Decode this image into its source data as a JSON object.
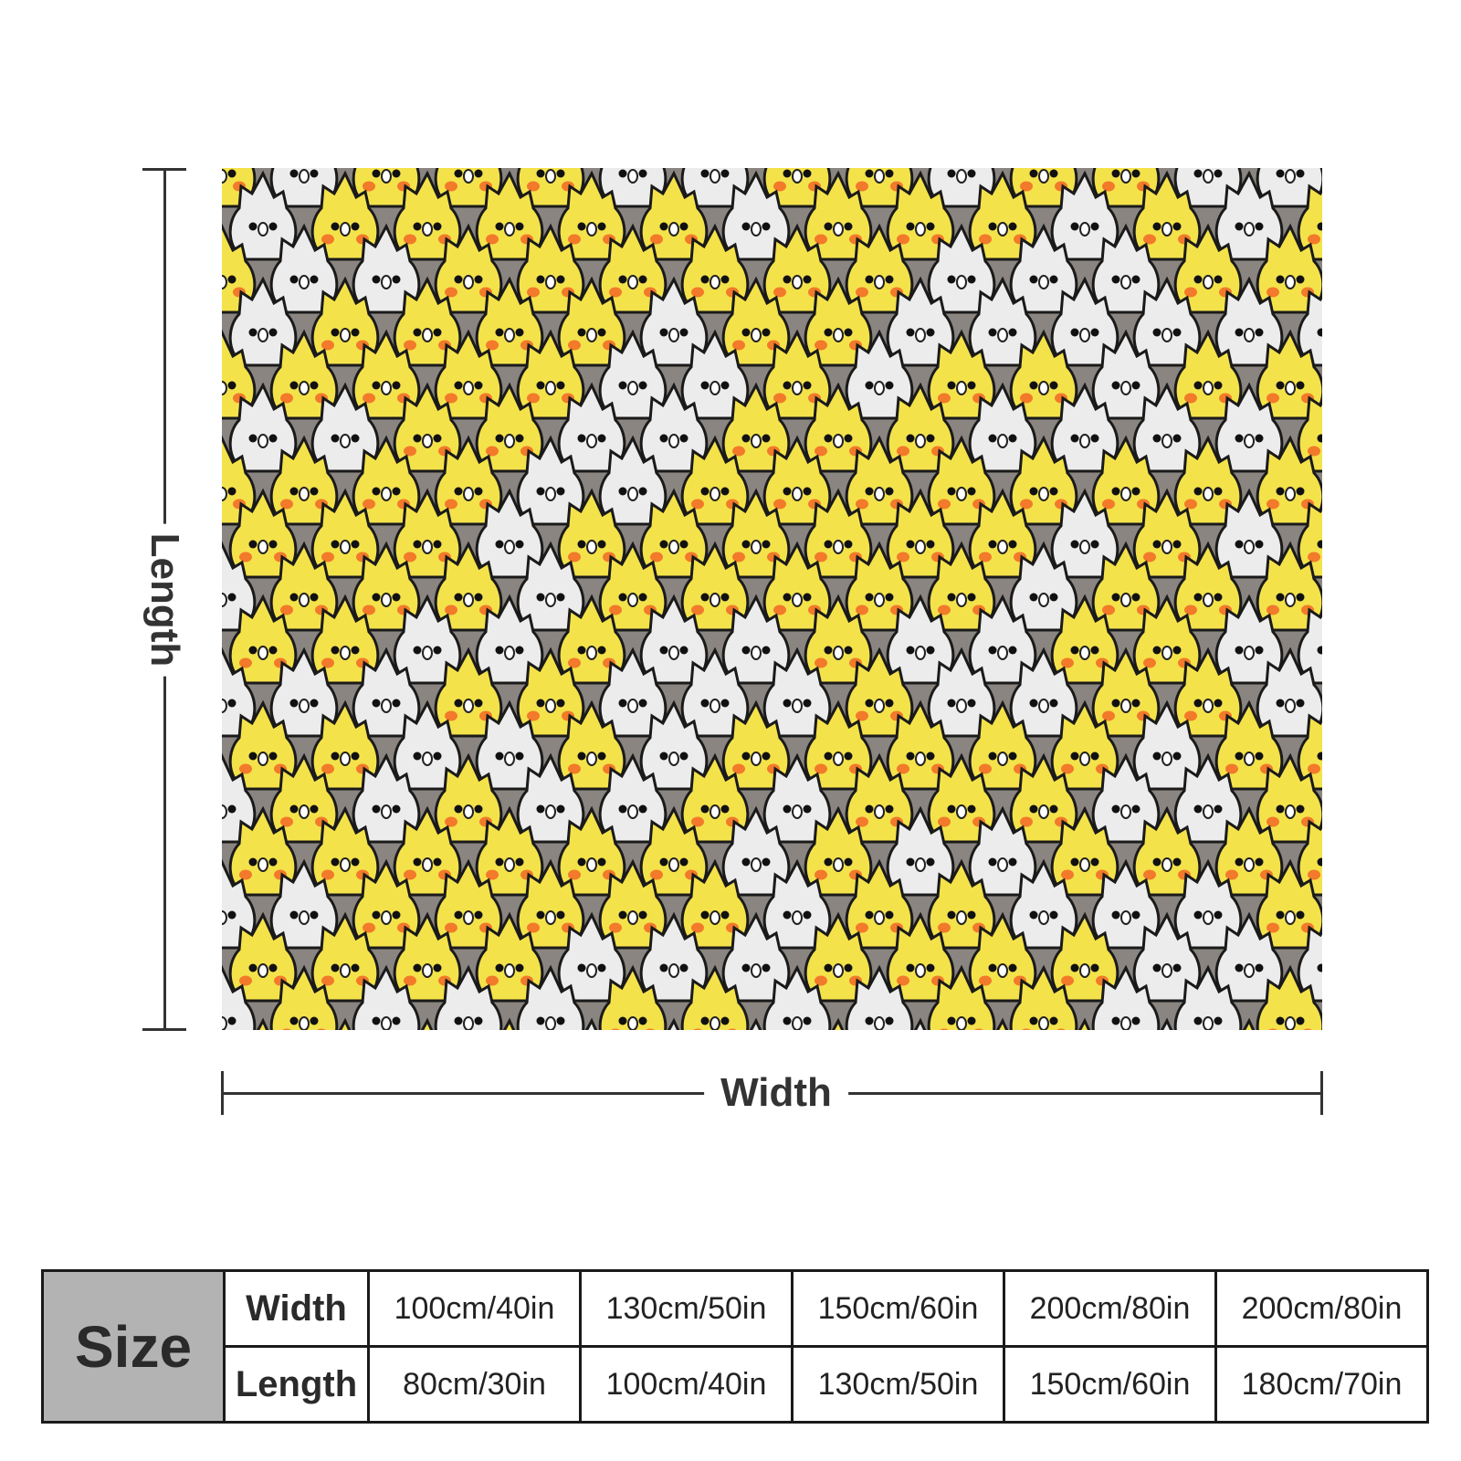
{
  "diagram": {
    "length_label": "Length",
    "width_label": "Width"
  },
  "product": {
    "pattern_icon": "cockatiel-pattern",
    "colors": {
      "yellow": "#f4e24b",
      "white": "#ececec",
      "grey": "#8a8580",
      "cheek": "#f27a2a",
      "outline": "#1a1a1a"
    }
  },
  "size_table": {
    "header": "Size",
    "row_labels": [
      "Width",
      "Length"
    ],
    "widths": [
      "100cm/40in",
      "130cm/50in",
      "150cm/60in",
      "200cm/80in",
      "200cm/80in"
    ],
    "lengths": [
      "80cm/30in",
      "100cm/40in",
      "130cm/50in",
      "150cm/60in",
      "180cm/70in"
    ]
  }
}
